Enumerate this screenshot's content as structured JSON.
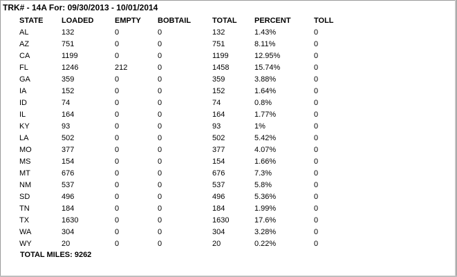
{
  "report": {
    "title": "TRK# - 14A For: 09/30/2013 - 10/01/2014",
    "total_miles": "TOTAL MILES: 9262"
  },
  "columns": [
    "STATE",
    "LOADED",
    "EMPTY",
    "BOBTAIL",
    "TOTAL",
    "PERCENT",
    "TOLL"
  ],
  "rows": [
    [
      "AL",
      "132",
      "0",
      "0",
      "132",
      "1.43%",
      "0"
    ],
    [
      "AZ",
      "751",
      "0",
      "0",
      "751",
      "8.11%",
      "0"
    ],
    [
      "CA",
      "1199",
      "0",
      "0",
      "1199",
      "12.95%",
      "0"
    ],
    [
      "FL",
      "1246",
      "212",
      "0",
      "1458",
      "15.74%",
      "0"
    ],
    [
      "GA",
      "359",
      "0",
      "0",
      "359",
      "3.88%",
      "0"
    ],
    [
      "IA",
      "152",
      "0",
      "0",
      "152",
      "1.64%",
      "0"
    ],
    [
      "ID",
      "74",
      "0",
      "0",
      "74",
      "0.8%",
      "0"
    ],
    [
      "IL",
      "164",
      "0",
      "0",
      "164",
      "1.77%",
      "0"
    ],
    [
      "KY",
      "93",
      "0",
      "0",
      "93",
      "1%",
      "0"
    ],
    [
      "LA",
      "502",
      "0",
      "0",
      "502",
      "5.42%",
      "0"
    ],
    [
      "MO",
      "377",
      "0",
      "0",
      "377",
      "4.07%",
      "0"
    ],
    [
      "MS",
      "154",
      "0",
      "0",
      "154",
      "1.66%",
      "0"
    ],
    [
      "MT",
      "676",
      "0",
      "0",
      "676",
      "7.3%",
      "0"
    ],
    [
      "NM",
      "537",
      "0",
      "0",
      "537",
      "5.8%",
      "0"
    ],
    [
      "SD",
      "496",
      "0",
      "0",
      "496",
      "5.36%",
      "0"
    ],
    [
      "TN",
      "184",
      "0",
      "0",
      "184",
      "1.99%",
      "0"
    ],
    [
      "TX",
      "1630",
      "0",
      "0",
      "1630",
      "17.6%",
      "0"
    ],
    [
      "WA",
      "304",
      "0",
      "0",
      "304",
      "3.28%",
      "0"
    ],
    [
      "WY",
      "20",
      "0",
      "0",
      "20",
      "0.22%",
      "0"
    ]
  ],
  "colors": {
    "background": "#ffffff",
    "text": "#000000",
    "border": "#9a9a9a"
  }
}
